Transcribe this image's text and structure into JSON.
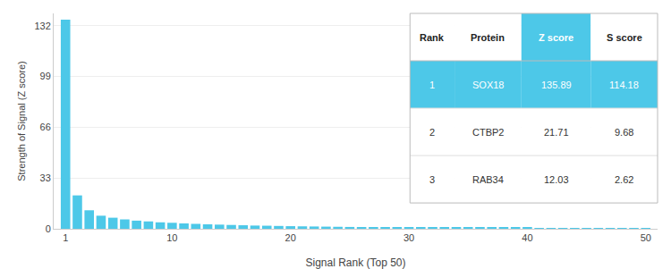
{
  "chart_data": {
    "type": "bar",
    "xlabel": "Signal Rank (Top 50)",
    "ylabel": "Strength of Signal (Z score)",
    "x": [
      1,
      2,
      3,
      4,
      5,
      6,
      7,
      8,
      9,
      10,
      11,
      12,
      13,
      14,
      15,
      16,
      17,
      18,
      19,
      20,
      21,
      22,
      23,
      24,
      25,
      26,
      27,
      28,
      29,
      30,
      31,
      32,
      33,
      34,
      35,
      36,
      37,
      38,
      39,
      40,
      41,
      42,
      43,
      44,
      45,
      46,
      47,
      48,
      49,
      50
    ],
    "values": [
      135.89,
      21.71,
      12.03,
      8.5,
      7.2,
      6.1,
      5.3,
      4.8,
      4.2,
      3.9,
      3.5,
      3.2,
      2.9,
      2.7,
      2.5,
      2.3,
      2.1,
      2.0,
      1.85,
      1.7,
      1.6,
      1.5,
      1.4,
      1.3,
      1.2,
      1.15,
      1.1,
      1.05,
      1.0,
      0.95,
      0.9,
      0.85,
      0.82,
      0.78,
      0.75,
      0.72,
      0.69,
      0.66,
      0.63,
      0.6,
      0.57,
      0.54,
      0.51,
      0.49,
      0.47,
      0.45,
      0.43,
      0.41,
      0.39,
      0.37
    ],
    "color": "#4DC8E8",
    "xlim": [
      0,
      51
    ],
    "xticks": [
      1,
      10,
      20,
      30,
      40,
      50
    ],
    "ylim": [
      0,
      140
    ],
    "yticks": [
      0,
      33,
      66,
      99,
      132
    ],
    "grid": true,
    "table": {
      "headers": [
        "Rank",
        "Protein",
        "Z score",
        "S score"
      ],
      "rows": [
        [
          "1",
          "SOX18",
          "135.89",
          "114.18"
        ],
        [
          "2",
          "CTBP2",
          "21.71",
          "9.68"
        ],
        [
          "3",
          "RAB34",
          "12.03",
          "2.62"
        ]
      ],
      "color": "#4DC8E8",
      "text_color": "#ffffff"
    }
  }
}
